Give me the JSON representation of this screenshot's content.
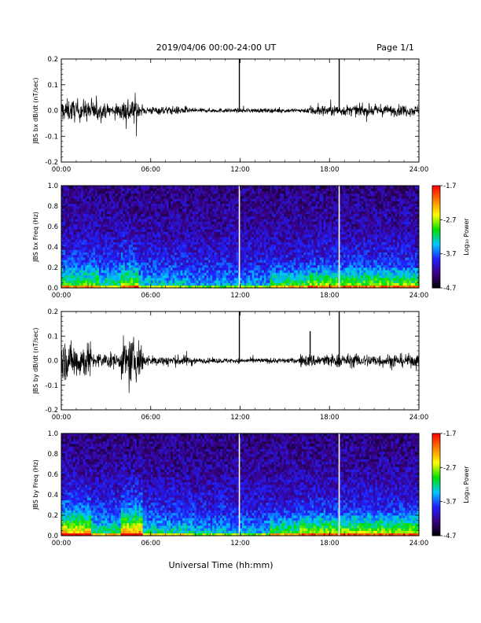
{
  "header": {
    "title": "2019/04/06  00:00-24:00 UT",
    "page": "Page 1/1"
  },
  "xlabel": "Universal Time (hh:mm)",
  "colorbar": {
    "label": "Log₁₀ Power",
    "ticks": [
      "-1.7",
      "-2.7",
      "-3.7",
      "-4.7"
    ],
    "range": [
      -4.7,
      -1.7
    ],
    "colors": [
      "#000000",
      "#3a0080",
      "#2020ff",
      "#00c8ff",
      "#00e000",
      "#ffff00",
      "#ff8000",
      "#ff0000"
    ]
  },
  "chart_data": [
    {
      "type": "line",
      "ylabel": "JBS bx dB/dt (nT/sec)",
      "xlim": [
        0,
        24
      ],
      "ylim": [
        -0.2,
        0.2
      ],
      "x_ticks": [
        "00:00",
        "06:00",
        "12:00",
        "18:00",
        "24:00"
      ],
      "y_ticks": [
        "0.2",
        "0.1",
        "0.0",
        "-0.1",
        "-0.2"
      ],
      "spikes": [
        {
          "x": 11.95,
          "y": 0.2
        },
        {
          "x": 18.65,
          "y": 0.2
        }
      ],
      "activity_segments": [
        {
          "from": 0.0,
          "to": 2.5,
          "amplitude": 0.04
        },
        {
          "from": 2.5,
          "to": 4.0,
          "amplitude": 0.025
        },
        {
          "from": 4.0,
          "to": 5.2,
          "amplitude": 0.05
        },
        {
          "from": 5.2,
          "to": 8.5,
          "amplitude": 0.015
        },
        {
          "from": 8.5,
          "to": 16.5,
          "amplitude": 0.008
        },
        {
          "from": 16.5,
          "to": 24.0,
          "amplitude": 0.02
        }
      ]
    },
    {
      "type": "heatmap",
      "ylabel": "JBS bx Freq (Hz)",
      "xlim": [
        0,
        24
      ],
      "ylim": [
        0.0,
        1.0
      ],
      "x_ticks": [
        "00:00",
        "06:00",
        "12:00",
        "18:00",
        "24:00"
      ],
      "y_ticks": [
        "1.0",
        "0.8",
        "0.6",
        "0.4",
        "0.2",
        "0.0"
      ],
      "gaps": [
        11.95,
        18.65
      ],
      "zlim": [
        -4.7,
        -1.7
      ]
    },
    {
      "type": "line",
      "ylabel": "JBS by dB/dt (nT/sec)",
      "xlim": [
        0,
        24
      ],
      "ylim": [
        -0.2,
        0.2
      ],
      "x_ticks": [
        "00:00",
        "06:00",
        "12:00",
        "18:00",
        "24:00"
      ],
      "y_ticks": [
        "0.2",
        "0.1",
        "0.0",
        "-0.1",
        "-0.2"
      ],
      "spikes": [
        {
          "x": 11.95,
          "y": 0.2
        },
        {
          "x": 16.7,
          "y": 0.12
        },
        {
          "x": 18.65,
          "y": 0.2
        }
      ],
      "activity_segments": [
        {
          "from": 0.0,
          "to": 2.0,
          "amplitude": 0.07
        },
        {
          "from": 2.0,
          "to": 4.0,
          "amplitude": 0.03
        },
        {
          "from": 4.0,
          "to": 5.5,
          "amplitude": 0.08
        },
        {
          "from": 5.5,
          "to": 9.0,
          "amplitude": 0.02
        },
        {
          "from": 9.0,
          "to": 16.0,
          "amplitude": 0.01
        },
        {
          "from": 16.0,
          "to": 24.0,
          "amplitude": 0.025
        }
      ]
    },
    {
      "type": "heatmap",
      "ylabel": "JBS by Freq (Hz)",
      "xlim": [
        0,
        24
      ],
      "ylim": [
        0.0,
        1.0
      ],
      "x_ticks": [
        "00:00",
        "06:00",
        "12:00",
        "18:00",
        "24:00"
      ],
      "y_ticks": [
        "1.0",
        "0.8",
        "0.6",
        "0.4",
        "0.2",
        "0.0"
      ],
      "gaps": [
        11.95,
        18.65
      ],
      "zlim": [
        -4.7,
        -1.7
      ]
    }
  ]
}
